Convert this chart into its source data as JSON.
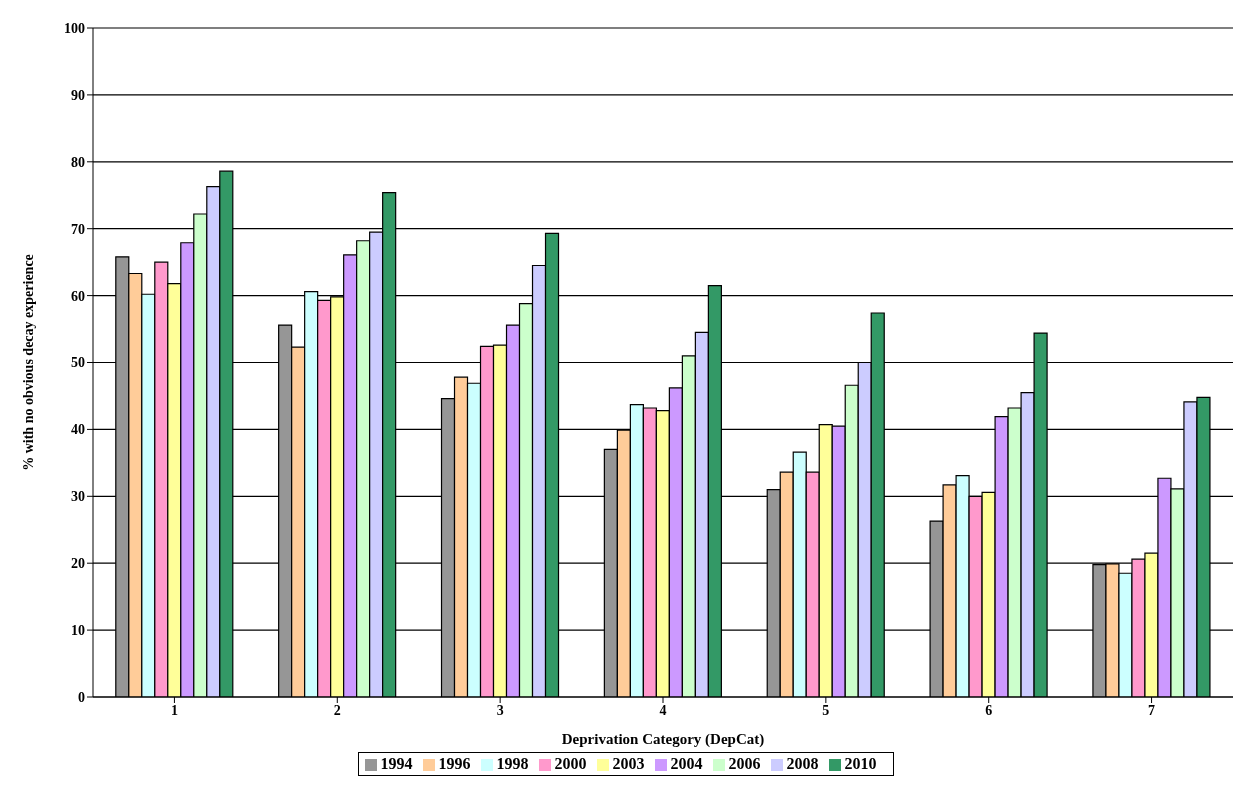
{
  "chart_data": {
    "type": "bar",
    "xlabel": "Deprivation Category (DepCat)",
    "ylabel": "% with no obvious decay experience",
    "categories": [
      "1",
      "2",
      "3",
      "4",
      "5",
      "6",
      "7"
    ],
    "series": [
      {
        "name": "1994",
        "color": "#969696",
        "values": [
          65.8,
          55.6,
          44.6,
          37.0,
          31.0,
          26.3,
          19.8
        ]
      },
      {
        "name": "1996",
        "color": "#ffcc99",
        "values": [
          63.3,
          52.3,
          47.8,
          39.9,
          33.6,
          31.7,
          19.9
        ]
      },
      {
        "name": "1998",
        "color": "#ccffff",
        "values": [
          60.2,
          60.6,
          46.9,
          43.7,
          36.6,
          33.1,
          18.5
        ]
      },
      {
        "name": "2000",
        "color": "#ff99cc",
        "values": [
          65.0,
          59.3,
          52.4,
          43.2,
          33.6,
          30.0,
          20.6
        ]
      },
      {
        "name": "2003",
        "color": "#ffff99",
        "values": [
          61.8,
          59.8,
          52.6,
          42.8,
          40.7,
          30.6,
          21.5
        ]
      },
      {
        "name": "2004",
        "color": "#cc99ff",
        "values": [
          67.9,
          66.1,
          55.6,
          46.2,
          40.5,
          41.9,
          32.7
        ]
      },
      {
        "name": "2006",
        "color": "#ccffcc",
        "values": [
          72.2,
          68.2,
          58.8,
          51.0,
          46.6,
          43.2,
          31.1
        ]
      },
      {
        "name": "2008",
        "color": "#ccccff",
        "values": [
          76.3,
          69.5,
          64.5,
          54.5,
          50.0,
          45.5,
          44.1
        ]
      },
      {
        "name": "2010",
        "color": "#339966",
        "values": [
          78.6,
          75.4,
          69.3,
          61.5,
          57.4,
          54.4,
          44.8
        ]
      }
    ],
    "ylim": [
      0,
      100
    ],
    "yticks": [
      0,
      10,
      20,
      30,
      40,
      50,
      60,
      70,
      80,
      90,
      100
    ],
    "grid": "y",
    "legend": "bottom"
  }
}
